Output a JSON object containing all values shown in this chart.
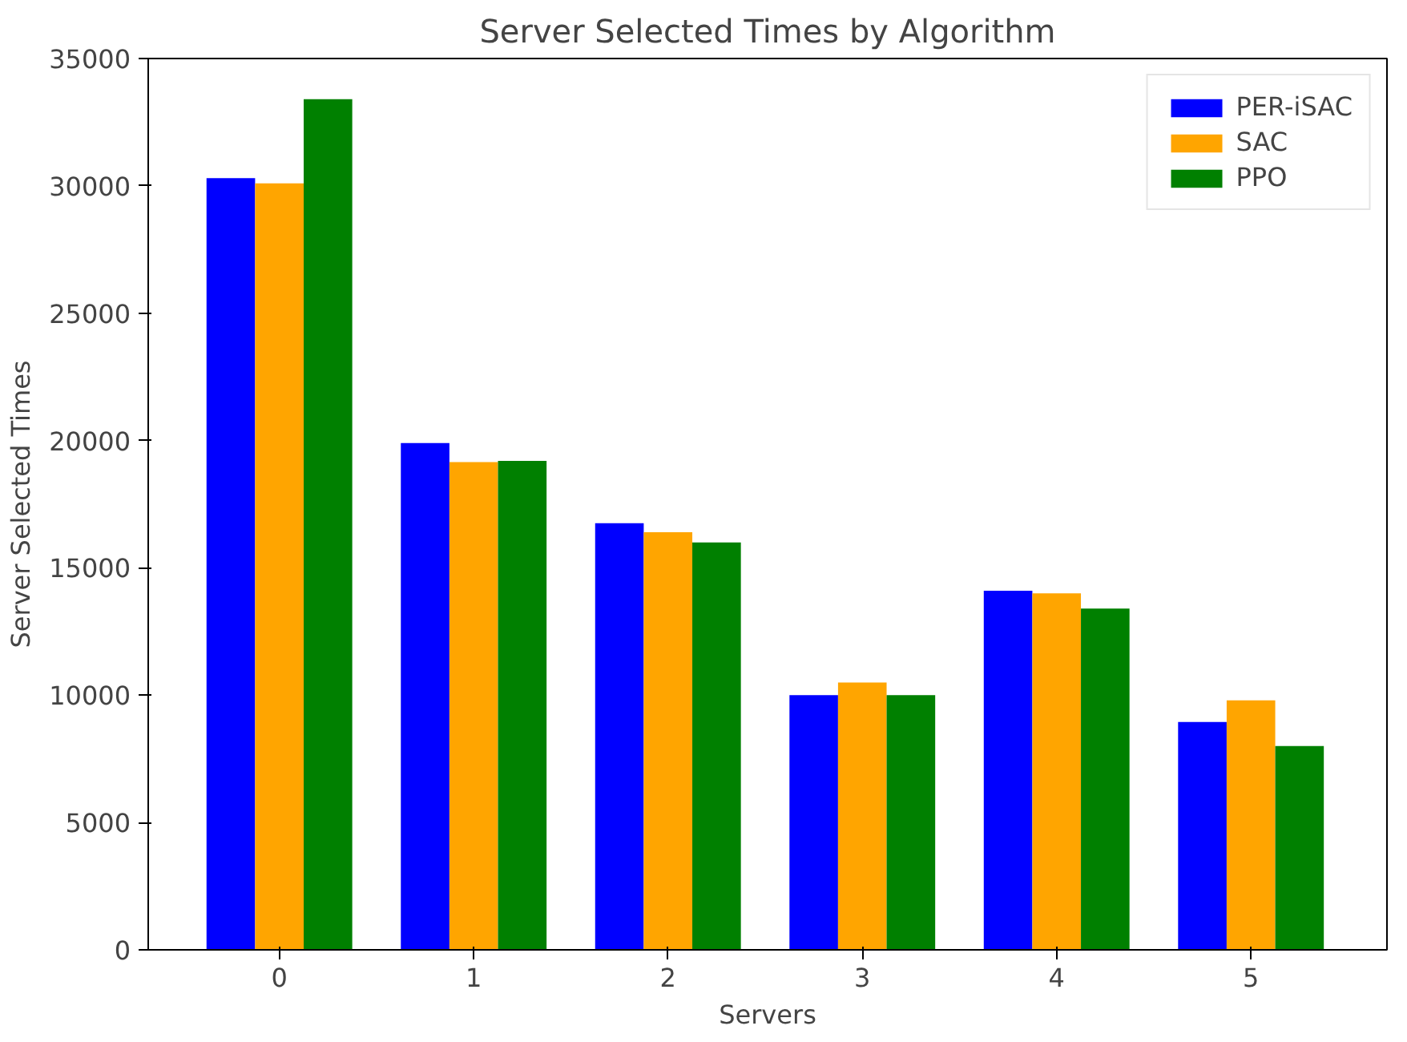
{
  "chart_data": {
    "type": "bar",
    "title": "Server Selected Times by Algorithm",
    "xlabel": "Servers",
    "ylabel": "Server Selected Times",
    "categories": [
      "0",
      "1",
      "2",
      "3",
      "4",
      "5"
    ],
    "series": [
      {
        "name": "PER-iSAC",
        "color": "#0000ff",
        "values": [
          30300,
          19900,
          16750,
          10000,
          14100,
          8950
        ]
      },
      {
        "name": "SAC",
        "color": "#ffa500",
        "values": [
          30100,
          19150,
          16400,
          10500,
          14000,
          9800
        ]
      },
      {
        "name": "PPO",
        "color": "#008000",
        "values": [
          33400,
          19200,
          16000,
          10000,
          13400,
          8000
        ]
      }
    ],
    "ylim": [
      0,
      35000
    ],
    "yticks": [
      0,
      5000,
      10000,
      15000,
      20000,
      25000,
      30000,
      35000
    ],
    "grid": false,
    "legend": "top right"
  }
}
